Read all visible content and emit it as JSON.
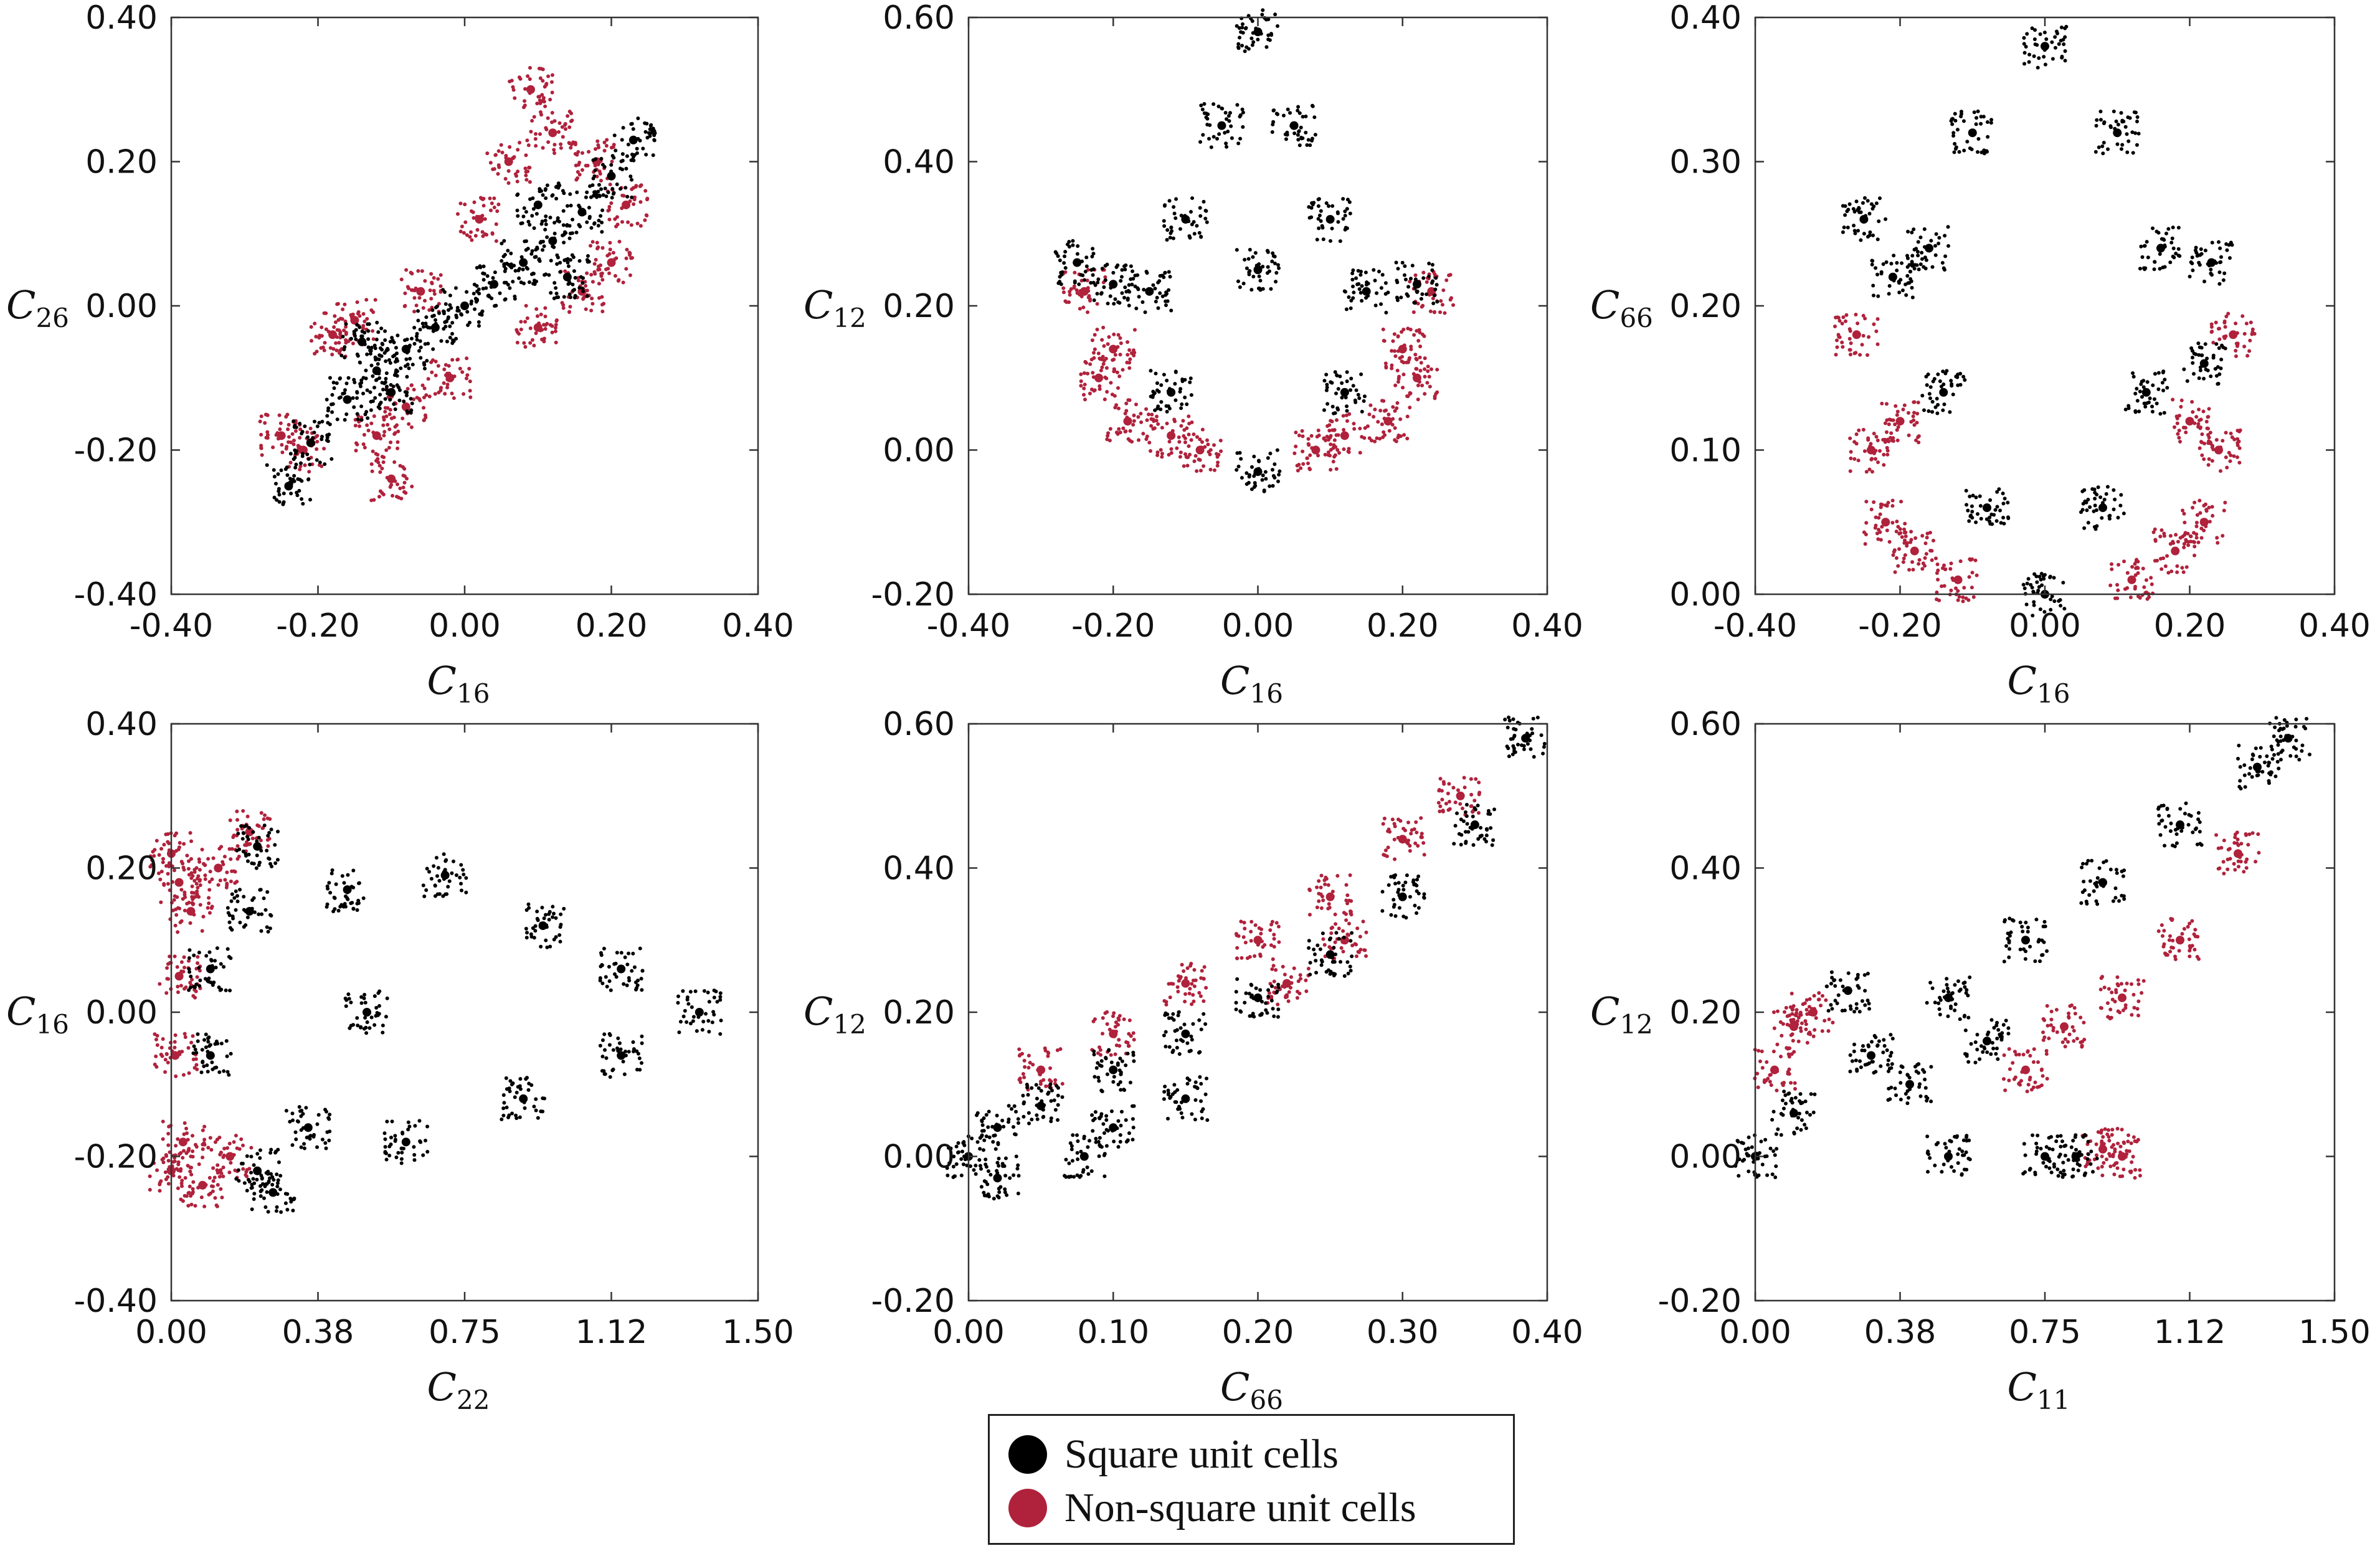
{
  "legend": {
    "square_label": "Square unit cells",
    "nonsquare_label": "Non-square unit cells",
    "square_color": "#000000",
    "nonsquare_color": "#b0223c"
  },
  "chart_data": [
    {
      "type": "scatter",
      "id": "c16-c26",
      "xlabel": "C",
      "xsub": "16",
      "ylabel": "C",
      "ysub": "26",
      "xlim": [
        -0.4,
        0.4
      ],
      "ylim": [
        -0.4,
        0.4
      ],
      "xticks": [
        -0.4,
        -0.2,
        0.0,
        0.2,
        0.4
      ],
      "xtick_labels": [
        "-0.40",
        "-0.20",
        "0.00",
        "0.20",
        "0.40"
      ],
      "yticks": [
        -0.4,
        -0.2,
        0.0,
        0.2,
        0.4
      ],
      "ytick_labels": [
        "-0.40",
        "-0.20",
        "0.00",
        "0.20",
        "0.40"
      ],
      "series": [
        {
          "name": "Non-square unit cells",
          "color": "#b0223c",
          "points": [
            [
              -0.22,
              -0.2
            ],
            [
              -0.18,
              -0.04
            ],
            [
              -0.15,
              -0.02
            ],
            [
              -0.1,
              -0.24
            ],
            [
              -0.12,
              -0.18
            ],
            [
              -0.06,
              0.02
            ],
            [
              0.02,
              0.12
            ],
            [
              0.06,
              0.2
            ],
            [
              0.12,
              0.24
            ],
            [
              0.18,
              0.2
            ],
            [
              0.2,
              0.06
            ],
            [
              0.16,
              0.02
            ],
            [
              0.1,
              -0.03
            ],
            [
              -0.02,
              -0.1
            ],
            [
              -0.08,
              -0.14
            ],
            [
              -0.25,
              -0.18
            ],
            [
              0.22,
              0.14
            ],
            [
              0.09,
              0.3
            ]
          ]
        },
        {
          "name": "Square unit cells",
          "color": "#000000",
          "points": [
            [
              -0.24,
              -0.25
            ],
            [
              -0.21,
              -0.19
            ],
            [
              -0.16,
              -0.13
            ],
            [
              -0.12,
              -0.09
            ],
            [
              -0.08,
              -0.06
            ],
            [
              -0.04,
              -0.03
            ],
            [
              0.0,
              0.0
            ],
            [
              0.04,
              0.03
            ],
            [
              0.08,
              0.06
            ],
            [
              0.12,
              0.09
            ],
            [
              0.16,
              0.13
            ],
            [
              0.2,
              0.18
            ],
            [
              0.23,
              0.23
            ],
            [
              -0.14,
              -0.05
            ],
            [
              -0.1,
              -0.12
            ],
            [
              0.1,
              0.14
            ],
            [
              0.14,
              0.04
            ]
          ]
        }
      ]
    },
    {
      "type": "scatter",
      "id": "c16-c12",
      "xlabel": "C",
      "xsub": "16",
      "ylabel": "C",
      "ysub": "12",
      "xlim": [
        -0.4,
        0.4
      ],
      "ylim": [
        -0.2,
        0.6
      ],
      "xticks": [
        -0.4,
        -0.2,
        0.0,
        0.2,
        0.4
      ],
      "xtick_labels": [
        "-0.40",
        "-0.20",
        "0.00",
        "0.20",
        "0.40"
      ],
      "yticks": [
        -0.2,
        0.0,
        0.2,
        0.4,
        0.6
      ],
      "ytick_labels": [
        "-0.20",
        "0.00",
        "0.20",
        "0.40",
        "0.60"
      ],
      "series": [
        {
          "name": "Non-square unit cells",
          "color": "#b0223c",
          "points": [
            [
              -0.24,
              0.22
            ],
            [
              -0.22,
              0.1
            ],
            [
              -0.18,
              0.04
            ],
            [
              -0.12,
              0.02
            ],
            [
              0.12,
              0.02
            ],
            [
              0.18,
              0.04
            ],
            [
              0.22,
              0.1
            ],
            [
              0.24,
              0.22
            ],
            [
              -0.2,
              0.14
            ],
            [
              0.2,
              0.14
            ],
            [
              -0.08,
              0.0
            ],
            [
              0.08,
              0.0
            ]
          ]
        },
        {
          "name": "Square unit cells",
          "color": "#000000",
          "points": [
            [
              0.0,
              0.58
            ],
            [
              -0.05,
              0.45
            ],
            [
              0.05,
              0.45
            ],
            [
              -0.1,
              0.32
            ],
            [
              0.1,
              0.32
            ],
            [
              -0.15,
              0.22
            ],
            [
              0.15,
              0.22
            ],
            [
              -0.12,
              0.08
            ],
            [
              0.12,
              0.08
            ],
            [
              0.0,
              -0.03
            ],
            [
              -0.2,
              0.23
            ],
            [
              0.22,
              0.23
            ],
            [
              -0.25,
              0.26
            ],
            [
              0.0,
              0.25
            ]
          ]
        }
      ]
    },
    {
      "type": "scatter",
      "id": "c16-c66",
      "xlabel": "C",
      "xsub": "16",
      "ylabel": "C",
      "ysub": "66",
      "xlim": [
        -0.4,
        0.4
      ],
      "ylim": [
        0.0,
        0.4
      ],
      "xticks": [
        -0.4,
        -0.2,
        0.0,
        0.2,
        0.4
      ],
      "xtick_labels": [
        "-0.40",
        "-0.20",
        "0.00",
        "0.20",
        "0.40"
      ],
      "yticks": [
        0.0,
        0.1,
        0.2,
        0.3,
        0.4
      ],
      "ytick_labels": [
        "0.00",
        "0.10",
        "0.20",
        "0.30",
        "0.40"
      ],
      "series": [
        {
          "name": "Non-square unit cells",
          "color": "#b0223c",
          "points": [
            [
              -0.22,
              0.05
            ],
            [
              -0.24,
              0.1
            ],
            [
              -0.18,
              0.03
            ],
            [
              -0.12,
              0.01
            ],
            [
              0.12,
              0.01
            ],
            [
              0.18,
              0.03
            ],
            [
              0.24,
              0.1
            ],
            [
              0.22,
              0.05
            ],
            [
              -0.26,
              0.18
            ],
            [
              0.26,
              0.18
            ],
            [
              -0.2,
              0.12
            ],
            [
              0.2,
              0.12
            ]
          ]
        },
        {
          "name": "Square unit cells",
          "color": "#000000",
          "points": [
            [
              0.0,
              0.38
            ],
            [
              -0.1,
              0.32
            ],
            [
              0.1,
              0.32
            ],
            [
              -0.16,
              0.24
            ],
            [
              0.16,
              0.24
            ],
            [
              -0.14,
              0.14
            ],
            [
              0.14,
              0.14
            ],
            [
              -0.08,
              0.06
            ],
            [
              0.08,
              0.06
            ],
            [
              0.0,
              0.0
            ],
            [
              -0.21,
              0.22
            ],
            [
              0.23,
              0.23
            ],
            [
              -0.25,
              0.26
            ],
            [
              0.22,
              0.16
            ]
          ]
        }
      ]
    },
    {
      "type": "scatter",
      "id": "c22-c16",
      "xlabel": "C",
      "xsub": "22",
      "ylabel": "C",
      "ysub": "16",
      "xlim": [
        0.0,
        1.5
      ],
      "ylim": [
        -0.4,
        0.4
      ],
      "xticks": [
        0.0,
        0.375,
        0.75,
        1.125,
        1.5
      ],
      "xtick_labels": [
        "0.00",
        "0.38",
        "0.75",
        "1.12",
        "1.50"
      ],
      "yticks": [
        -0.4,
        -0.2,
        0.0,
        0.2,
        0.4
      ],
      "ytick_labels": [
        "-0.40",
        "-0.20",
        "0.00",
        "0.20",
        "0.40"
      ],
      "series": [
        {
          "name": "Non-square unit cells",
          "color": "#b0223c",
          "points": [
            [
              0.0,
              0.22
            ],
            [
              0.02,
              0.18
            ],
            [
              0.05,
              0.14
            ],
            [
              0.12,
              0.2
            ],
            [
              0.2,
              0.25
            ],
            [
              0.0,
              -0.22
            ],
            [
              0.03,
              -0.18
            ],
            [
              0.08,
              -0.24
            ],
            [
              0.15,
              -0.2
            ],
            [
              0.02,
              0.05
            ],
            [
              0.01,
              -0.06
            ]
          ]
        },
        {
          "name": "Square unit cells",
          "color": "#000000",
          "points": [
            [
              0.2,
              0.14
            ],
            [
              0.45,
              0.17
            ],
            [
              0.7,
              0.19
            ],
            [
              0.95,
              0.12
            ],
            [
              1.15,
              0.06
            ],
            [
              1.35,
              0.0
            ],
            [
              1.15,
              -0.06
            ],
            [
              0.9,
              -0.12
            ],
            [
              0.6,
              -0.18
            ],
            [
              0.35,
              -0.16
            ],
            [
              0.1,
              -0.06
            ],
            [
              0.1,
              0.06
            ],
            [
              0.22,
              0.23
            ],
            [
              0.22,
              -0.22
            ],
            [
              0.26,
              -0.25
            ],
            [
              0.5,
              0.0
            ]
          ]
        }
      ]
    },
    {
      "type": "scatter",
      "id": "c66-c12",
      "xlabel": "C",
      "xsub": "66",
      "ylabel": "C",
      "ysub": "12",
      "xlim": [
        0.0,
        0.4
      ],
      "ylim": [
        -0.2,
        0.6
      ],
      "xticks": [
        0.0,
        0.1,
        0.2,
        0.3,
        0.4
      ],
      "xtick_labels": [
        "0.00",
        "0.10",
        "0.20",
        "0.30",
        "0.40"
      ],
      "yticks": [
        -0.2,
        0.0,
        0.2,
        0.4,
        0.6
      ],
      "ytick_labels": [
        "-0.20",
        "0.00",
        "0.20",
        "0.40",
        "0.60"
      ],
      "series": [
        {
          "name": "Non-square unit cells",
          "color": "#b0223c",
          "points": [
            [
              0.05,
              0.12
            ],
            [
              0.1,
              0.17
            ],
            [
              0.15,
              0.24
            ],
            [
              0.2,
              0.3
            ],
            [
              0.25,
              0.36
            ],
            [
              0.3,
              0.44
            ],
            [
              0.34,
              0.5
            ],
            [
              0.22,
              0.24
            ],
            [
              0.26,
              0.3
            ]
          ]
        },
        {
          "name": "Square unit cells",
          "color": "#000000",
          "points": [
            [
              0.0,
              0.0
            ],
            [
              0.02,
              0.04
            ],
            [
              0.05,
              0.07
            ],
            [
              0.1,
              0.12
            ],
            [
              0.15,
              0.17
            ],
            [
              0.2,
              0.22
            ],
            [
              0.25,
              0.28
            ],
            [
              0.3,
              0.36
            ],
            [
              0.35,
              0.46
            ],
            [
              0.385,
              0.58
            ],
            [
              0.1,
              0.04
            ],
            [
              0.15,
              0.08
            ],
            [
              0.08,
              0.0
            ],
            [
              0.02,
              -0.03
            ]
          ]
        }
      ]
    },
    {
      "type": "scatter",
      "id": "c11-c12",
      "xlabel": "C",
      "xsub": "11",
      "ylabel": "C",
      "ysub": "12",
      "xlim": [
        0.0,
        1.5
      ],
      "ylim": [
        -0.2,
        0.6
      ],
      "xticks": [
        0.0,
        0.375,
        0.75,
        1.125,
        1.5
      ],
      "xtick_labels": [
        "0.00",
        "0.38",
        "0.75",
        "1.12",
        "1.50"
      ],
      "yticks": [
        -0.2,
        0.0,
        0.2,
        0.4,
        0.6
      ],
      "ytick_labels": [
        "-0.20",
        "0.00",
        "0.20",
        "0.40",
        "0.60"
      ],
      "series": [
        {
          "name": "Non-square unit cells",
          "color": "#b0223c",
          "points": [
            [
              0.05,
              0.12
            ],
            [
              0.1,
              0.18
            ],
            [
              0.15,
              0.2
            ],
            [
              0.8,
              0.18
            ],
            [
              0.95,
              0.22
            ],
            [
              1.1,
              0.3
            ],
            [
              1.25,
              0.42
            ],
            [
              0.7,
              0.12
            ],
            [
              0.9,
              0.01
            ],
            [
              0.95,
              0.0
            ]
          ]
        },
        {
          "name": "Square unit cells",
          "color": "#000000",
          "points": [
            [
              0.0,
              0.0
            ],
            [
              0.1,
              0.06
            ],
            [
              0.3,
              0.14
            ],
            [
              0.5,
              0.22
            ],
            [
              0.7,
              0.3
            ],
            [
              0.9,
              0.38
            ],
            [
              1.1,
              0.46
            ],
            [
              1.3,
              0.54
            ],
            [
              1.38,
              0.58
            ],
            [
              0.24,
              0.23
            ],
            [
              0.5,
              0.0
            ],
            [
              0.75,
              0.0
            ],
            [
              0.83,
              0.0
            ],
            [
              0.4,
              0.1
            ],
            [
              0.6,
              0.16
            ]
          ]
        }
      ]
    }
  ]
}
